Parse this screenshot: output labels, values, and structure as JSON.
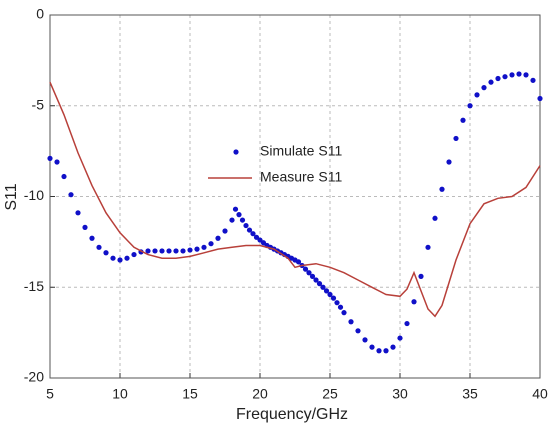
{
  "chart_data": {
    "type": "line",
    "xlabel": "Frequency/GHz",
    "ylabel": "S11",
    "xlim": [
      5,
      40
    ],
    "xticks": [
      5,
      10,
      15,
      20,
      25,
      30,
      35,
      40
    ],
    "ylim": [
      -20,
      0
    ],
    "yticks": [
      -20,
      -15,
      -10,
      -5,
      0
    ],
    "grid": true,
    "legend": "center",
    "series": [
      {
        "name": "Simulate S11",
        "color": "#1010c8",
        "mode": "markers",
        "x": [
          5,
          5.5,
          6,
          6.5,
          7,
          7.5,
          8,
          8.5,
          9,
          9.5,
          10,
          10.5,
          11,
          11.5,
          12,
          12.5,
          13,
          13.5,
          14,
          14.5,
          15,
          15.5,
          16,
          16.5,
          17,
          17.5,
          18,
          18.25,
          18.5,
          18.75,
          19,
          19.25,
          19.5,
          19.75,
          20,
          20.25,
          20.5,
          20.75,
          21,
          21.25,
          21.5,
          21.75,
          22,
          22.25,
          22.5,
          22.75,
          23,
          23.25,
          23.5,
          23.75,
          24,
          24.25,
          24.5,
          24.75,
          25,
          25.25,
          25.5,
          25.75,
          26,
          26.5,
          27,
          27.5,
          28,
          28.5,
          29,
          29.5,
          30,
          30.5,
          31,
          31.5,
          32,
          32.5,
          33,
          33.5,
          34,
          34.5,
          35,
          35.5,
          36,
          36.5,
          37,
          37.5,
          38,
          38.5,
          39,
          39.5,
          40
        ],
        "values": [
          -7.9,
          -8.1,
          -8.9,
          -9.9,
          -10.9,
          -11.7,
          -12.3,
          -12.8,
          -13.1,
          -13.4,
          -13.5,
          -13.4,
          -13.2,
          -13.05,
          -13,
          -13,
          -13,
          -13,
          -13,
          -13,
          -12.95,
          -12.9,
          -12.8,
          -12.6,
          -12.3,
          -11.9,
          -11.3,
          -10.7,
          -11,
          -11.3,
          -11.6,
          -11.85,
          -12.05,
          -12.25,
          -12.4,
          -12.55,
          -12.7,
          -12.8,
          -12.9,
          -13,
          -13.1,
          -13.2,
          -13.3,
          -13.4,
          -13.5,
          -13.6,
          -13.8,
          -14,
          -14.2,
          -14.4,
          -14.6,
          -14.8,
          -15,
          -15.2,
          -15.4,
          -15.6,
          -15.85,
          -16.1,
          -16.4,
          -16.9,
          -17.4,
          -17.9,
          -18.3,
          -18.5,
          -18.5,
          -18.3,
          -17.8,
          -17,
          -15.8,
          -14.4,
          -12.8,
          -11.2,
          -9.6,
          -8.1,
          -6.8,
          -5.8,
          -5,
          -4.4,
          -4,
          -3.7,
          -3.5,
          -3.4,
          -3.3,
          -3.25,
          -3.3,
          -3.6,
          -4.6
        ]
      },
      {
        "name": "Measure S11",
        "color": "#b8403a",
        "mode": "line",
        "x": [
          5,
          6,
          7,
          8,
          9,
          10,
          11,
          12,
          13,
          14,
          15,
          16,
          17,
          18,
          19,
          20,
          21,
          22,
          22.5,
          23,
          24,
          25,
          26,
          27,
          28,
          29,
          30,
          30.5,
          31,
          31.5,
          32,
          32.5,
          33,
          34,
          35,
          36,
          37,
          38,
          39,
          40
        ],
        "values": [
          -3.7,
          -5.5,
          -7.6,
          -9.4,
          -10.9,
          -12,
          -12.8,
          -13.2,
          -13.4,
          -13.4,
          -13.3,
          -13.1,
          -12.9,
          -12.8,
          -12.7,
          -12.7,
          -12.9,
          -13.4,
          -13.9,
          -13.8,
          -13.7,
          -13.9,
          -14.2,
          -14.6,
          -15,
          -15.4,
          -15.5,
          -15.1,
          -14.2,
          -15.2,
          -16.2,
          -16.6,
          -16,
          -13.5,
          -11.5,
          -10.4,
          -10.1,
          -10,
          -9.5,
          -8.3
        ]
      }
    ]
  }
}
